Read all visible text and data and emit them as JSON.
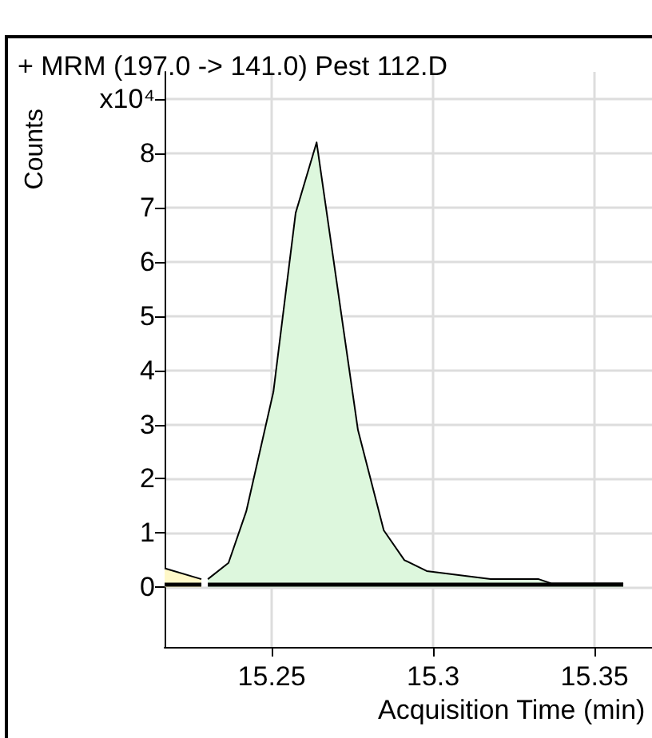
{
  "chart_data": {
    "type": "area",
    "title": "+ MRM (197.0 -> 141.0) Pest 112.D",
    "xlabel": "Acquisition Time (min)",
    "ylabel": "Counts",
    "series": [
      {
        "type": "area",
        "color": "#fff8c8",
        "x": [
          15.2168,
          15.2282
        ],
        "values": [
          0.35,
          0.15
        ]
      },
      {
        "type": "area",
        "color": "#ddf7dd",
        "x": [
          15.2302,
          15.2366,
          15.2421,
          15.2505,
          15.2574,
          15.2639,
          15.2767,
          15.2847,
          15.2911,
          15.298,
          15.3178,
          15.3327,
          15.3366,
          15.3589
        ],
        "values": [
          0.15,
          0.45,
          1.4,
          3.6,
          6.9,
          8.2,
          2.9,
          1.05,
          0.5,
          0.3,
          0.15,
          0.15,
          0.07,
          0.07
        ]
      },
      {
        "type": "line",
        "color": "#000000",
        "x": [
          15.2168,
          15.2282,
          15.2292,
          15.2302,
          15.3589
        ],
        "values": [
          0.05,
          0.05,
          null,
          0.05,
          0.05
        ]
      }
    ],
    "xlim": [
      15.2168,
      15.3678
    ],
    "xticks": [
      15.25,
      15.3,
      15.35
    ],
    "ylim": [
      -1.1,
      9.5
    ],
    "yticks": [
      0,
      1,
      2,
      3,
      4,
      5,
      6,
      7,
      8,
      {
        "value": 9,
        "label": "x10⁴"
      }
    ],
    "grid": true,
    "marker": "none"
  }
}
